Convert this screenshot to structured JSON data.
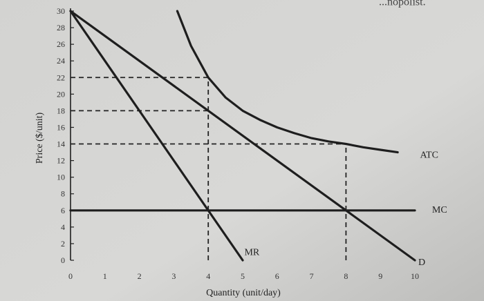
{
  "colors": {
    "ink": "#1e1e1e",
    "paper": "#d6d6d4",
    "dashed": "#222222"
  },
  "corner_text": "...nopolist.",
  "chart_data": {
    "type": "line",
    "title": "",
    "xlabel": "Quantity (unit/day)",
    "ylabel": "Price ($/unit)",
    "xlim": [
      0,
      10
    ],
    "ylim": [
      0,
      30
    ],
    "x_ticks": [
      0,
      1,
      2,
      3,
      4,
      5,
      6,
      7,
      8,
      9,
      10
    ],
    "x_tick_labels": [
      "0",
      "1",
      "2",
      "3",
      "4",
      "5",
      "6",
      "7",
      "8",
      "9",
      "10"
    ],
    "y_ticks": [
      0,
      2,
      4,
      6,
      8,
      10,
      12,
      14,
      16,
      18,
      20,
      22,
      24,
      26,
      28,
      30
    ],
    "y_tick_labels": [
      "0",
      "2",
      "4",
      "6",
      "8",
      "10",
      "12",
      "14",
      "16",
      "18",
      "20",
      "22",
      "24",
      "26",
      "28",
      "30"
    ],
    "grid": false,
    "series": [
      {
        "name": "D",
        "x": [
          0,
          10
        ],
        "y": [
          30,
          0
        ]
      },
      {
        "name": "MR",
        "x": [
          0,
          5
        ],
        "y": [
          30,
          0
        ]
      },
      {
        "name": "MC",
        "x": [
          0,
          10
        ],
        "y": [
          6,
          6
        ]
      },
      {
        "name": "ATC",
        "x": [
          3.1,
          3.5,
          4,
          4.5,
          5,
          5.5,
          6,
          6.5,
          7,
          7.5,
          8,
          8.5,
          9,
          9.5
        ],
        "y": [
          30,
          25.8,
          22,
          19.6,
          18,
          16.9,
          16,
          15.3,
          14.7,
          14.3,
          14,
          13.6,
          13.3,
          13
        ]
      }
    ],
    "reference_lines": [
      {
        "x1": 0,
        "y1": 22,
        "x2": 4,
        "y2": 22
      },
      {
        "x1": 0,
        "y1": 18,
        "x2": 4,
        "y2": 18
      },
      {
        "x1": 4,
        "y1": 0,
        "x2": 4,
        "y2": 22
      },
      {
        "x1": 0,
        "y1": 14,
        "x2": 8,
        "y2": 14
      },
      {
        "x1": 8,
        "y1": 0,
        "x2": 8,
        "y2": 14
      }
    ],
    "curve_labels": [
      {
        "text": "ATC",
        "x": 10.15,
        "y": 12.6
      },
      {
        "text": "MC",
        "x": 10.5,
        "y": 6.0
      },
      {
        "text": "MR",
        "x": 5.05,
        "y": 0.9
      },
      {
        "text": "D",
        "x": 10.1,
        "y": -0.3
      }
    ]
  }
}
